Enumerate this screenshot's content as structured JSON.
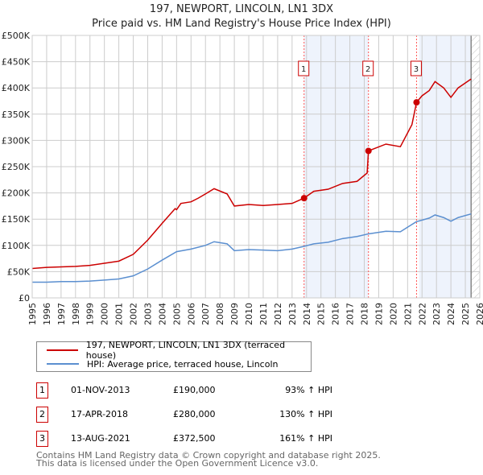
{
  "chart_data": {
    "type": "line",
    "title": "197, NEWPORT, LINCOLN, LN1 3DX",
    "subtitle": "Price paid vs. HM Land Registry's House Price Index (HPI)",
    "xlim": [
      1995,
      2026
    ],
    "ylim": [
      0,
      500000
    ],
    "yticks": [
      0,
      50000,
      100000,
      150000,
      200000,
      250000,
      300000,
      350000,
      400000,
      450000,
      500000
    ],
    "ytick_labels": [
      "£0",
      "£50K",
      "£100K",
      "£150K",
      "£200K",
      "£250K",
      "£300K",
      "£350K",
      "£400K",
      "£450K",
      "£500K"
    ],
    "xticks": [
      1995,
      1996,
      1997,
      1998,
      1999,
      2000,
      2001,
      2002,
      2003,
      2004,
      2005,
      2006,
      2007,
      2008,
      2009,
      2010,
      2011,
      2012,
      2013,
      2014,
      2015,
      2016,
      2017,
      2018,
      2019,
      2020,
      2021,
      2022,
      2023,
      2024,
      2025,
      2026
    ],
    "grid": true,
    "series": [
      {
        "name": "197, NEWPORT, LINCOLN, LN1 3DX (terraced house)",
        "color": "#cc0000",
        "x": [
          1995,
          1996,
          1997,
          1998,
          1999,
          2000,
          2001,
          2002,
          2003,
          2004,
          2004.9,
          2005,
          2005.3,
          2006,
          2006.5,
          2007,
          2007.6,
          2008.5,
          2009,
          2010,
          2011,
          2012,
          2013,
          2013.83,
          2014.5,
          2015.5,
          2016.5,
          2017.5,
          2018.2,
          2018.29,
          2019.5,
          2020.5,
          2021.3,
          2021.62,
          2022,
          2022.5,
          2022.9,
          2023.5,
          2024,
          2024.5,
          2025.4
        ],
        "y": [
          56000,
          58000,
          59000,
          60000,
          62000,
          66000,
          70000,
          83000,
          110000,
          142000,
          170000,
          168000,
          180000,
          183000,
          190000,
          198000,
          208000,
          198000,
          175000,
          178000,
          176000,
          178000,
          180000,
          190000,
          203000,
          207000,
          218000,
          222000,
          238000,
          280000,
          293000,
          288000,
          330000,
          372500,
          385000,
          395000,
          412000,
          400000,
          382000,
          400000,
          417000
        ]
      },
      {
        "name": "HPI: Average price, terraced house, Lincoln",
        "color": "#5b8fd0",
        "x": [
          1995,
          1996,
          1997,
          1998,
          1999,
          2000,
          2001,
          2002,
          2003,
          2004,
          2005,
          2006,
          2007,
          2007.6,
          2008.5,
          2009,
          2010,
          2011,
          2012,
          2013,
          2013.8,
          2014.5,
          2015.5,
          2016.5,
          2017.5,
          2018.3,
          2019.5,
          2020.5,
          2021.6,
          2022.5,
          2022.9,
          2023.5,
          2024,
          2024.5,
          2025.4
        ],
        "y": [
          30000,
          30000,
          31000,
          31000,
          32000,
          34000,
          36000,
          42000,
          55000,
          72000,
          88000,
          93000,
          100000,
          107000,
          103000,
          90000,
          92000,
          91000,
          90000,
          93000,
          98000,
          103000,
          106000,
          113000,
          117000,
          122000,
          127000,
          126000,
          145000,
          152000,
          158000,
          153000,
          146000,
          153000,
          160000
        ]
      }
    ],
    "sales": [
      {
        "id": "1",
        "x": 2013.83,
        "price": 190000,
        "date": "01-NOV-2013",
        "price_label": "£190,000",
        "hpi": "93% ↑ HPI"
      },
      {
        "id": "2",
        "x": 2018.29,
        "price": 280000,
        "date": "17-APR-2018",
        "price_label": "£280,000",
        "hpi": "130% ↑ HPI"
      },
      {
        "id": "3",
        "x": 2021.62,
        "price": 372500,
        "date": "13-AUG-2021",
        "price_label": "£372,500",
        "hpi": "161% ↑ HPI"
      }
    ],
    "shaded": [
      [
        2013.83,
        2018.29
      ],
      [
        2021.8,
        2025.4
      ]
    ],
    "data_end": 2025.4
  },
  "footer": [
    "Contains HM Land Registry data © Crown copyright and database right 2025.",
    "This data is licensed under the Open Government Licence v3.0."
  ]
}
